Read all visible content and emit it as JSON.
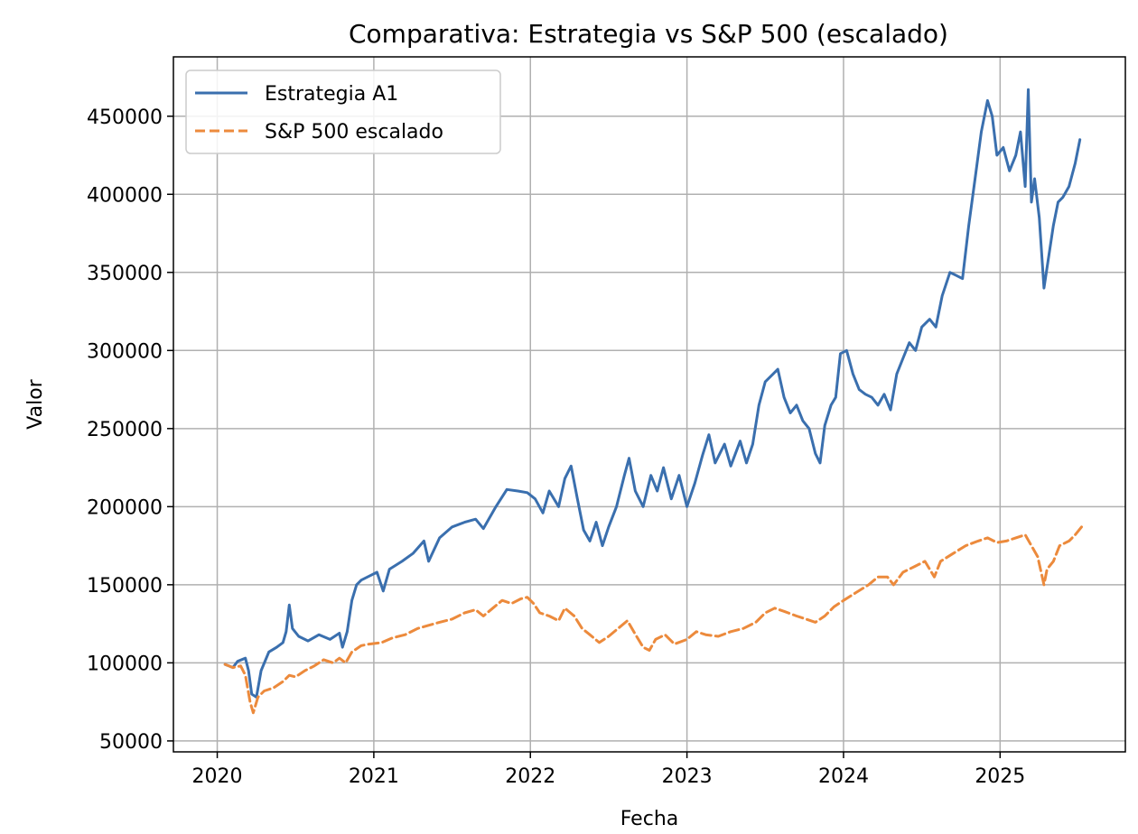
{
  "chart_data": {
    "type": "line",
    "title": "Comparativa: Estrategia vs S&P 500 (escalado)",
    "xlabel": "Fecha",
    "ylabel": "Valor",
    "xlim": [
      2019.72,
      2025.8
    ],
    "ylim": [
      43000,
      488000
    ],
    "x_ticks": [
      2020,
      2021,
      2022,
      2023,
      2024,
      2025
    ],
    "x_tick_labels": [
      "2020",
      "2021",
      "2022",
      "2023",
      "2024",
      "2025"
    ],
    "y_ticks": [
      50000,
      100000,
      150000,
      200000,
      250000,
      300000,
      350000,
      400000,
      450000
    ],
    "y_tick_labels": [
      "50000",
      "100000",
      "150000",
      "200000",
      "250000",
      "300000",
      "350000",
      "400000",
      "450000"
    ],
    "grid": true,
    "legend_position": "top-left",
    "series": [
      {
        "name": "Estrategia A1",
        "color": "#3a6fae",
        "style": "solid",
        "points": [
          [
            2020.05,
            99000
          ],
          [
            2020.1,
            97000
          ],
          [
            2020.13,
            101000
          ],
          [
            2020.18,
            103000
          ],
          [
            2020.2,
            95000
          ],
          [
            2020.22,
            80000
          ],
          [
            2020.25,
            78000
          ],
          [
            2020.28,
            95000
          ],
          [
            2020.33,
            107000
          ],
          [
            2020.38,
            110000
          ],
          [
            2020.42,
            113000
          ],
          [
            2020.44,
            120000
          ],
          [
            2020.46,
            137000
          ],
          [
            2020.48,
            122000
          ],
          [
            2020.52,
            117000
          ],
          [
            2020.58,
            114000
          ],
          [
            2020.65,
            118000
          ],
          [
            2020.72,
            115000
          ],
          [
            2020.78,
            119000
          ],
          [
            2020.8,
            110000
          ],
          [
            2020.83,
            120000
          ],
          [
            2020.86,
            140000
          ],
          [
            2020.89,
            150000
          ],
          [
            2020.92,
            153000
          ],
          [
            2020.96,
            155000
          ],
          [
            2021.02,
            158000
          ],
          [
            2021.06,
            146000
          ],
          [
            2021.1,
            160000
          ],
          [
            2021.18,
            165000
          ],
          [
            2021.25,
            170000
          ],
          [
            2021.32,
            178000
          ],
          [
            2021.35,
            165000
          ],
          [
            2021.42,
            180000
          ],
          [
            2021.5,
            187000
          ],
          [
            2021.58,
            190000
          ],
          [
            2021.65,
            192000
          ],
          [
            2021.7,
            186000
          ],
          [
            2021.78,
            200000
          ],
          [
            2021.85,
            211000
          ],
          [
            2021.92,
            210000
          ],
          [
            2021.98,
            209000
          ],
          [
            2022.03,
            205000
          ],
          [
            2022.08,
            196000
          ],
          [
            2022.12,
            210000
          ],
          [
            2022.18,
            200000
          ],
          [
            2022.22,
            218000
          ],
          [
            2022.26,
            226000
          ],
          [
            2022.3,
            205000
          ],
          [
            2022.34,
            185000
          ],
          [
            2022.38,
            178000
          ],
          [
            2022.42,
            190000
          ],
          [
            2022.46,
            175000
          ],
          [
            2022.5,
            187000
          ],
          [
            2022.55,
            200000
          ],
          [
            2022.6,
            220000
          ],
          [
            2022.63,
            231000
          ],
          [
            2022.67,
            210000
          ],
          [
            2022.72,
            200000
          ],
          [
            2022.77,
            220000
          ],
          [
            2022.81,
            210000
          ],
          [
            2022.85,
            225000
          ],
          [
            2022.9,
            205000
          ],
          [
            2022.95,
            220000
          ],
          [
            2023.0,
            200000
          ],
          [
            2023.05,
            215000
          ],
          [
            2023.1,
            233000
          ],
          [
            2023.14,
            246000
          ],
          [
            2023.18,
            228000
          ],
          [
            2023.24,
            240000
          ],
          [
            2023.28,
            226000
          ],
          [
            2023.34,
            242000
          ],
          [
            2023.38,
            228000
          ],
          [
            2023.42,
            240000
          ],
          [
            2023.46,
            265000
          ],
          [
            2023.5,
            280000
          ],
          [
            2023.55,
            285000
          ],
          [
            2023.58,
            288000
          ],
          [
            2023.62,
            270000
          ],
          [
            2023.66,
            260000
          ],
          [
            2023.7,
            265000
          ],
          [
            2023.74,
            255000
          ],
          [
            2023.78,
            250000
          ],
          [
            2023.82,
            234000
          ],
          [
            2023.85,
            228000
          ],
          [
            2023.88,
            252000
          ],
          [
            2023.92,
            265000
          ],
          [
            2023.95,
            270000
          ],
          [
            2023.98,
            298000
          ],
          [
            2024.02,
            300000
          ],
          [
            2024.06,
            285000
          ],
          [
            2024.1,
            275000
          ],
          [
            2024.14,
            272000
          ],
          [
            2024.18,
            270000
          ],
          [
            2024.22,
            265000
          ],
          [
            2024.26,
            272000
          ],
          [
            2024.3,
            262000
          ],
          [
            2024.34,
            285000
          ],
          [
            2024.38,
            295000
          ],
          [
            2024.42,
            305000
          ],
          [
            2024.46,
            300000
          ],
          [
            2024.5,
            315000
          ],
          [
            2024.55,
            320000
          ],
          [
            2024.59,
            315000
          ],
          [
            2024.63,
            335000
          ],
          [
            2024.68,
            350000
          ],
          [
            2024.72,
            348000
          ],
          [
            2024.76,
            346000
          ],
          [
            2024.8,
            380000
          ],
          [
            2024.84,
            410000
          ],
          [
            2024.88,
            440000
          ],
          [
            2024.92,
            460000
          ],
          [
            2024.95,
            450000
          ],
          [
            2024.98,
            425000
          ],
          [
            2025.02,
            430000
          ],
          [
            2025.06,
            415000
          ],
          [
            2025.1,
            425000
          ],
          [
            2025.13,
            440000
          ],
          [
            2025.16,
            405000
          ],
          [
            2025.18,
            467000
          ],
          [
            2025.2,
            395000
          ],
          [
            2025.22,
            410000
          ],
          [
            2025.25,
            385000
          ],
          [
            2025.28,
            340000
          ],
          [
            2025.31,
            360000
          ],
          [
            2025.34,
            380000
          ],
          [
            2025.37,
            395000
          ],
          [
            2025.4,
            398000
          ],
          [
            2025.44,
            405000
          ],
          [
            2025.48,
            420000
          ],
          [
            2025.51,
            435000
          ]
        ]
      },
      {
        "name": "S&P 500 escalado",
        "color": "#ec8a3c",
        "style": "dashed",
        "points": [
          [
            2020.05,
            99000
          ],
          [
            2020.1,
            97000
          ],
          [
            2020.15,
            98000
          ],
          [
            2020.18,
            92000
          ],
          [
            2020.21,
            75000
          ],
          [
            2020.23,
            68000
          ],
          [
            2020.26,
            78000
          ],
          [
            2020.3,
            82000
          ],
          [
            2020.36,
            84000
          ],
          [
            2020.42,
            88000
          ],
          [
            2020.46,
            92000
          ],
          [
            2020.5,
            91000
          ],
          [
            2020.56,
            95000
          ],
          [
            2020.62,
            98000
          ],
          [
            2020.68,
            102000
          ],
          [
            2020.74,
            100000
          ],
          [
            2020.78,
            103000
          ],
          [
            2020.82,
            100000
          ],
          [
            2020.86,
            107000
          ],
          [
            2020.92,
            111000
          ],
          [
            2020.97,
            112000
          ],
          [
            2021.05,
            113000
          ],
          [
            2021.12,
            116000
          ],
          [
            2021.2,
            118000
          ],
          [
            2021.28,
            122000
          ],
          [
            2021.35,
            124000
          ],
          [
            2021.42,
            126000
          ],
          [
            2021.5,
            128000
          ],
          [
            2021.58,
            132000
          ],
          [
            2021.65,
            134000
          ],
          [
            2021.7,
            130000
          ],
          [
            2021.76,
            135000
          ],
          [
            2021.82,
            140000
          ],
          [
            2021.88,
            138000
          ],
          [
            2021.94,
            141000
          ],
          [
            2021.98,
            142000
          ],
          [
            2022.02,
            138000
          ],
          [
            2022.06,
            132000
          ],
          [
            2022.12,
            130000
          ],
          [
            2022.18,
            127000
          ],
          [
            2022.22,
            135000
          ],
          [
            2022.28,
            130000
          ],
          [
            2022.33,
            122000
          ],
          [
            2022.38,
            118000
          ],
          [
            2022.44,
            113000
          ],
          [
            2022.5,
            117000
          ],
          [
            2022.56,
            122000
          ],
          [
            2022.62,
            127000
          ],
          [
            2022.66,
            120000
          ],
          [
            2022.72,
            110000
          ],
          [
            2022.76,
            108000
          ],
          [
            2022.8,
            115000
          ],
          [
            2022.86,
            118000
          ],
          [
            2022.92,
            112000
          ],
          [
            2023.0,
            115000
          ],
          [
            2023.06,
            120000
          ],
          [
            2023.12,
            118000
          ],
          [
            2023.2,
            117000
          ],
          [
            2023.28,
            120000
          ],
          [
            2023.36,
            122000
          ],
          [
            2023.44,
            126000
          ],
          [
            2023.5,
            132000
          ],
          [
            2023.56,
            135000
          ],
          [
            2023.62,
            133000
          ],
          [
            2023.7,
            130000
          ],
          [
            2023.76,
            128000
          ],
          [
            2023.82,
            126000
          ],
          [
            2023.88,
            130000
          ],
          [
            2023.94,
            136000
          ],
          [
            2024.0,
            140000
          ],
          [
            2024.08,
            145000
          ],
          [
            2024.16,
            150000
          ],
          [
            2024.22,
            155000
          ],
          [
            2024.28,
            155000
          ],
          [
            2024.32,
            150000
          ],
          [
            2024.38,
            158000
          ],
          [
            2024.46,
            162000
          ],
          [
            2024.52,
            165000
          ],
          [
            2024.58,
            155000
          ],
          [
            2024.62,
            165000
          ],
          [
            2024.7,
            170000
          ],
          [
            2024.78,
            175000
          ],
          [
            2024.86,
            178000
          ],
          [
            2024.92,
            180000
          ],
          [
            2024.98,
            177000
          ],
          [
            2025.04,
            178000
          ],
          [
            2025.1,
            180000
          ],
          [
            2025.16,
            182000
          ],
          [
            2025.2,
            175000
          ],
          [
            2025.24,
            168000
          ],
          [
            2025.28,
            150000
          ],
          [
            2025.3,
            160000
          ],
          [
            2025.34,
            165000
          ],
          [
            2025.38,
            175000
          ],
          [
            2025.44,
            178000
          ],
          [
            2025.48,
            182000
          ],
          [
            2025.52,
            187000
          ]
        ]
      }
    ]
  }
}
